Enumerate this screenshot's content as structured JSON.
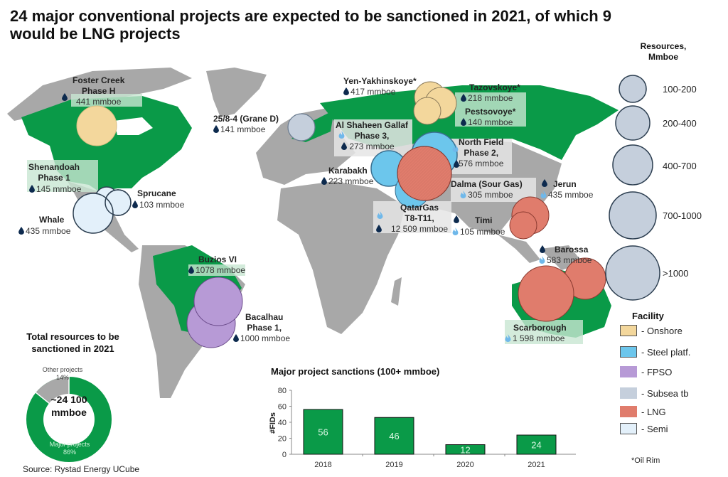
{
  "title": "24 major conventional projects are expected to be sanctioned in 2021, of which 9 would be LNG projects",
  "projects": [
    {
      "name": "Foster Creek Phase H",
      "name_l1": "Foster Creek",
      "name_l2": "Phase H",
      "value": "441 mmboe",
      "facility": "Onshore",
      "icons": [
        "oil"
      ]
    },
    {
      "name": "Shenandoah Phase 1",
      "name_l1": "Shenandoah",
      "name_l2": "Phase 1",
      "value": "145 mmboe",
      "facility": "Semi",
      "icons": [
        "oil"
      ]
    },
    {
      "name": "Sprucane",
      "value": "103 mmboe",
      "facility": "Semi",
      "icons": [
        "oil"
      ]
    },
    {
      "name": "Whale",
      "value": "435 mmboe",
      "facility": "Semi",
      "icons": [
        "oil"
      ]
    },
    {
      "name": "25/8-4 (Grane D)",
      "value": "141 mmboe",
      "facility": "Subsea tb",
      "icons": [
        "oil"
      ]
    },
    {
      "name": "Yen-Yakhinskoye*",
      "value": "417 mmboe",
      "facility": "Onshore",
      "icons": [
        "oil"
      ]
    },
    {
      "name": "Tazovskoye*",
      "value": "218 mmboe",
      "facility": "Onshore",
      "icons": [
        "oil"
      ]
    },
    {
      "name": "Pestsovoye*",
      "value": "140 mmboe",
      "facility": "Onshore",
      "icons": [
        "oil"
      ]
    },
    {
      "name": "Al Shaheen Gallaf Phase 3,",
      "name_l1": "Al Shaheen Gallaf",
      "name_l2": "Phase 3,",
      "value": "273 mmboe",
      "facility": "Steel platf.",
      "icons": [
        "gas",
        "oil"
      ]
    },
    {
      "name": "Karabakh",
      "value": "223 mmboe",
      "facility": "Steel platf.",
      "icons": [
        "oil"
      ]
    },
    {
      "name": "North Field Phase 2,",
      "name_l1": "North Field",
      "name_l2": "Phase 2,",
      "value": "576 mmboe",
      "facility": "Steel platf.",
      "icons": [
        "gas",
        "oil"
      ]
    },
    {
      "name": "Dalma (Sour Gas)",
      "value": "305 mmboe",
      "facility": "Steel platf.",
      "icons": [
        "gas"
      ]
    },
    {
      "name": "QatarGas T8-T11,",
      "name_l1": "QatarGas",
      "name_l2": "T8-T11,",
      "value": "12 509 mmboe",
      "facility": "LNG",
      "icons": [
        "gas",
        "oil"
      ]
    },
    {
      "name": "Timi",
      "value": "105 mmboe",
      "facility": "LNG",
      "icons": [
        "oil",
        "gas"
      ]
    },
    {
      "name": "Jerun",
      "value": "435 mmboe",
      "facility": "LNG",
      "icons": [
        "oil",
        "gas"
      ]
    },
    {
      "name": "Barossa",
      "value": "583 mmboe",
      "facility": "LNG",
      "icons": [
        "oil",
        "gas"
      ]
    },
    {
      "name": "Scarborough",
      "value": "1 598 mmboe",
      "facility": "LNG",
      "icons": [
        "gas"
      ]
    },
    {
      "name": "Buzios VI",
      "value": "1078 mmboe",
      "facility": "FPSO",
      "icons": [
        "oil"
      ]
    },
    {
      "name": "Bacalhau Phase 1,",
      "name_l1": "Bacalhau",
      "name_l2": "Phase 1,",
      "value": "1000 mmboe",
      "facility": "FPSO",
      "icons": [
        "oil"
      ]
    }
  ],
  "legend_resources": {
    "title_l1": "Resources,",
    "title_l2": "Mmboe",
    "items": [
      "100-200",
      "200-400",
      "400-700",
      "700-1000",
      ">1000"
    ]
  },
  "legend_facility": {
    "title": "Facility",
    "items": [
      {
        "label": "- Onshore",
        "color": "#f3d79c"
      },
      {
        "label": "- Steel platf.",
        "color": "#6cc6ec"
      },
      {
        "label": "- FPSO",
        "color": "#b79ad6"
      },
      {
        "label": "- Subsea tb",
        "color": "#c5cfdc"
      },
      {
        "label": "- LNG",
        "color": "#e07c6c"
      },
      {
        "label": "- Semi",
        "color": "#e3f0fa"
      }
    ],
    "footnote": "*Oil Rim"
  },
  "colors": {
    "highlight_country": "#0a9a48",
    "land": "#a8a8a8",
    "oil_icon": "#0d2a4e",
    "gas_icon": "#6fb8ea"
  },
  "donut": {
    "title_l1": "Total resources to be",
    "title_l2": "sanctioned in 2021",
    "center_l1": "~24 100",
    "center_l2": "mmboe",
    "other_label": "Other projects",
    "other_pct": "14%",
    "major_label": "Major projects",
    "major_pct": "86%"
  },
  "source": "Source: Rystad Energy UCube",
  "chart_data": [
    {
      "type": "bar",
      "title": "Major project sanctions (100+ mmboe)",
      "categories": [
        "2018",
        "2019",
        "2020",
        "2021"
      ],
      "values": [
        56,
        46,
        12,
        24
      ],
      "xlabel": "",
      "ylabel": "#FIDs",
      "ylim": [
        0,
        80
      ],
      "yticks": [
        "0",
        "20",
        "40",
        "60",
        "80"
      ],
      "bar_color": "#0a9a48",
      "data_labels": true,
      "grid": false
    },
    {
      "type": "pie",
      "title": "Total resources to be sanctioned in 2021",
      "categories": [
        "Major projects",
        "Other projects"
      ],
      "values": [
        86,
        14
      ],
      "center_text": "~24 100 mmboe",
      "colors": [
        "#0a9a48",
        "#a8a8a8"
      ]
    }
  ]
}
